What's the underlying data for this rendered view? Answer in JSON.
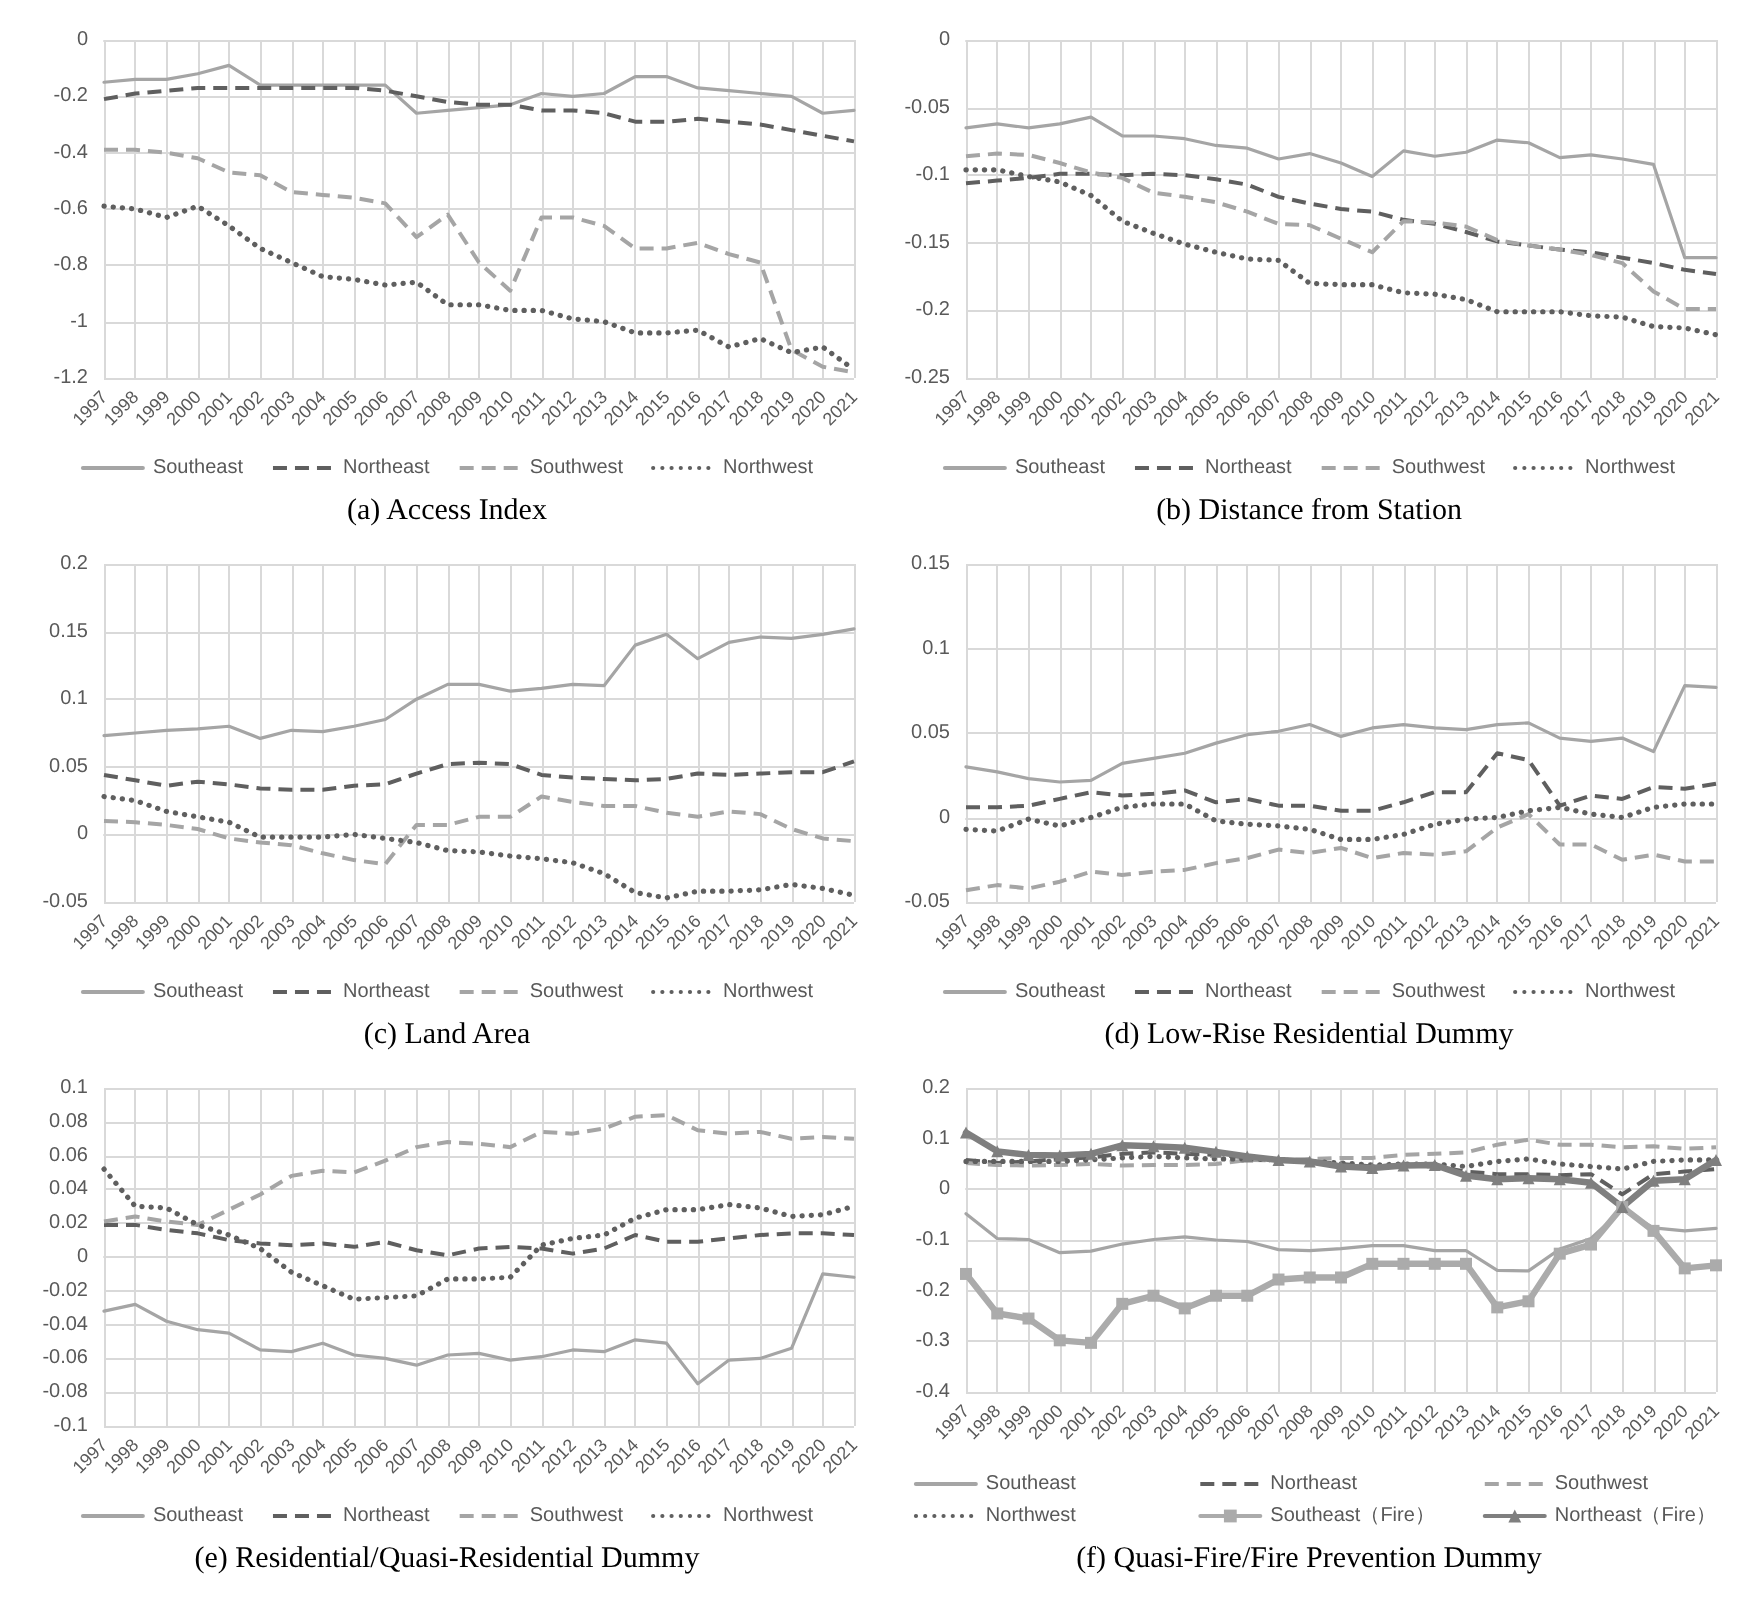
{
  "chart_data": [
    {
      "type": "line",
      "title": "(a) Access Index",
      "categories": [
        "1997",
        "1998",
        "1999",
        "2000",
        "2001",
        "2002",
        "2003",
        "2004",
        "2005",
        "2006",
        "2007",
        "2008",
        "2009",
        "2010",
        "2011",
        "2012",
        "2013",
        "2014",
        "2015",
        "2016",
        "2017",
        "2018",
        "2019",
        "2020",
        "2021"
      ],
      "ylim": [
        -1.2,
        0
      ],
      "yticks": [
        -1.2,
        -1,
        -0.8,
        -0.6,
        -0.4,
        -0.2,
        0
      ],
      "grid": true,
      "legend": "bottom",
      "series": [
        {
          "name": "Southeast",
          "color": "#a5a5a5",
          "line_style": "solid",
          "values": [
            -0.15,
            -0.14,
            -0.14,
            -0.12,
            -0.09,
            -0.16,
            -0.16,
            -0.16,
            -0.16,
            -0.16,
            -0.26,
            -0.25,
            -0.24,
            -0.23,
            -0.19,
            -0.2,
            -0.19,
            -0.13,
            -0.13,
            -0.17,
            -0.18,
            -0.19,
            -0.2,
            -0.26,
            -0.25
          ]
        },
        {
          "name": "Northeast",
          "color": "#5f5f5f",
          "line_style": "dashed",
          "values": [
            -0.21,
            -0.19,
            -0.18,
            -0.17,
            -0.17,
            -0.17,
            -0.17,
            -0.17,
            -0.17,
            -0.18,
            -0.2,
            -0.22,
            -0.23,
            -0.23,
            -0.25,
            -0.25,
            -0.26,
            -0.29,
            -0.29,
            -0.28,
            -0.29,
            -0.3,
            -0.32,
            -0.34,
            -0.36
          ]
        },
        {
          "name": "Southwest",
          "color": "#a5a5a5",
          "line_style": "dashed",
          "values": [
            -0.39,
            -0.39,
            -0.4,
            -0.42,
            -0.47,
            -0.48,
            -0.54,
            -0.55,
            -0.56,
            -0.58,
            -0.7,
            -0.62,
            -0.79,
            -0.89,
            -0.63,
            -0.63,
            -0.66,
            -0.74,
            -0.74,
            -0.72,
            -0.76,
            -0.79,
            -1.1,
            -1.16,
            -1.18
          ]
        },
        {
          "name": "Northwest",
          "color": "#5f5f5f",
          "line_style": "dotted",
          "values": [
            -0.59,
            -0.6,
            -0.63,
            -0.59,
            -0.66,
            -0.74,
            -0.79,
            -0.84,
            -0.85,
            -0.87,
            -0.86,
            -0.94,
            -0.94,
            -0.96,
            -0.96,
            -0.99,
            -1,
            -1.04,
            -1.04,
            -1.03,
            -1.09,
            -1.06,
            -1.11,
            -1.09,
            -1.17
          ]
        }
      ]
    },
    {
      "type": "line",
      "title": "(b) Distance from Station",
      "categories": [
        "1997",
        "1998",
        "1999",
        "2000",
        "2001",
        "2002",
        "2003",
        "2004",
        "2005",
        "2006",
        "2007",
        "2008",
        "2009",
        "2010",
        "2011",
        "2012",
        "2013",
        "2014",
        "2015",
        "2016",
        "2017",
        "2018",
        "2019",
        "2020",
        "2021"
      ],
      "ylim": [
        -0.25,
        0
      ],
      "yticks": [
        -0.25,
        -0.2,
        -0.15,
        -0.1,
        -0.05,
        0
      ],
      "grid": true,
      "legend": "bottom",
      "series": [
        {
          "name": "Southeast",
          "color": "#a5a5a5",
          "line_style": "solid",
          "values": [
            -0.065,
            -0.062,
            -0.065,
            -0.062,
            -0.057,
            -0.071,
            -0.071,
            -0.073,
            -0.078,
            -0.08,
            -0.088,
            -0.084,
            -0.091,
            -0.101,
            -0.082,
            -0.086,
            -0.083,
            -0.074,
            -0.076,
            -0.087,
            -0.085,
            -0.088,
            -0.092,
            -0.161,
            -0.161
          ]
        },
        {
          "name": "Northeast",
          "color": "#5f5f5f",
          "line_style": "dashed",
          "values": [
            -0.106,
            -0.104,
            -0.102,
            -0.099,
            -0.099,
            -0.1,
            -0.099,
            -0.1,
            -0.103,
            -0.107,
            -0.116,
            -0.121,
            -0.125,
            -0.127,
            -0.133,
            -0.136,
            -0.142,
            -0.149,
            -0.152,
            -0.155,
            -0.157,
            -0.161,
            -0.165,
            -0.17,
            -0.173
          ]
        },
        {
          "name": "Southwest",
          "color": "#a5a5a5",
          "line_style": "dashed",
          "values": [
            -0.086,
            -0.084,
            -0.085,
            -0.091,
            -0.098,
            -0.102,
            -0.113,
            -0.116,
            -0.12,
            -0.127,
            -0.136,
            -0.137,
            -0.147,
            -0.157,
            -0.134,
            -0.135,
            -0.138,
            -0.148,
            -0.152,
            -0.155,
            -0.159,
            -0.165,
            -0.186,
            -0.199,
            -0.199
          ]
        },
        {
          "name": "Northwest",
          "color": "#5f5f5f",
          "line_style": "dotted",
          "values": [
            -0.096,
            -0.096,
            -0.101,
            -0.105,
            -0.115,
            -0.134,
            -0.143,
            -0.151,
            -0.157,
            -0.162,
            -0.163,
            -0.18,
            -0.181,
            -0.181,
            -0.187,
            -0.188,
            -0.192,
            -0.201,
            -0.201,
            -0.201,
            -0.204,
            -0.205,
            -0.212,
            -0.213,
            -0.218
          ]
        }
      ]
    },
    {
      "type": "line",
      "title": "(c) Land Area",
      "categories": [
        "1997",
        "1998",
        "1999",
        "2000",
        "2001",
        "2002",
        "2003",
        "2004",
        "2005",
        "2006",
        "2007",
        "2008",
        "2009",
        "2010",
        "2011",
        "2012",
        "2013",
        "2014",
        "2015",
        "2016",
        "2017",
        "2018",
        "2019",
        "2020",
        "2021"
      ],
      "ylim": [
        -0.05,
        0.2
      ],
      "yticks": [
        -0.05,
        0,
        0.05,
        0.1,
        0.15,
        0.2
      ],
      "grid": true,
      "legend": "bottom",
      "series": [
        {
          "name": "Southeast",
          "color": "#a5a5a5",
          "line_style": "solid",
          "values": [
            0.073,
            0.075,
            0.077,
            0.078,
            0.08,
            0.071,
            0.077,
            0.076,
            0.08,
            0.085,
            0.1,
            0.111,
            0.111,
            0.106,
            0.108,
            0.111,
            0.11,
            0.14,
            0.148,
            0.13,
            0.142,
            0.146,
            0.145,
            0.148,
            0.152
          ]
        },
        {
          "name": "Northeast",
          "color": "#5f5f5f",
          "line_style": "dashed",
          "values": [
            0.044,
            0.04,
            0.036,
            0.039,
            0.037,
            0.034,
            0.033,
            0.033,
            0.036,
            0.037,
            0.045,
            0.052,
            0.053,
            0.052,
            0.044,
            0.042,
            0.041,
            0.04,
            0.041,
            0.045,
            0.044,
            0.045,
            0.046,
            0.046,
            0.054
          ]
        },
        {
          "name": "Southwest",
          "color": "#a5a5a5",
          "line_style": "dashed",
          "values": [
            0.01,
            0.009,
            0.007,
            0.004,
            -0.003,
            -0.006,
            -0.008,
            -0.014,
            -0.019,
            -0.022,
            0.007,
            0.007,
            0.013,
            0.013,
            0.028,
            0.024,
            0.021,
            0.021,
            0.016,
            0.013,
            0.017,
            0.015,
            0.004,
            -0.003,
            -0.005
          ]
        },
        {
          "name": "Northwest",
          "color": "#5f5f5f",
          "line_style": "dotted",
          "values": [
            0.028,
            0.025,
            0.017,
            0.013,
            0.009,
            -0.002,
            -0.002,
            -0.002,
            0,
            -0.003,
            -0.006,
            -0.012,
            -0.013,
            -0.016,
            -0.018,
            -0.021,
            -0.029,
            -0.043,
            -0.047,
            -0.042,
            -0.042,
            -0.041,
            -0.037,
            -0.04,
            -0.045
          ]
        }
      ]
    },
    {
      "type": "line",
      "title": "(d) Low-Rise Residential Dummy",
      "categories": [
        "1997",
        "1998",
        "1999",
        "2000",
        "2001",
        "2002",
        "2003",
        "2004",
        "2005",
        "2006",
        "2007",
        "2008",
        "2009",
        "2010",
        "2011",
        "2012",
        "2013",
        "2014",
        "2015",
        "2016",
        "2017",
        "2018",
        "2019",
        "2020",
        "2021"
      ],
      "ylim": [
        -0.05,
        0.15
      ],
      "yticks": [
        -0.05,
        0,
        0.05,
        0.1,
        0.15
      ],
      "grid": true,
      "legend": "bottom",
      "series": [
        {
          "name": "Southeast",
          "color": "#a5a5a5",
          "line_style": "solid",
          "values": [
            0.03,
            0.027,
            0.023,
            0.021,
            0.022,
            0.032,
            0.035,
            0.038,
            0.044,
            0.049,
            0.051,
            0.055,
            0.048,
            0.053,
            0.055,
            0.053,
            0.052,
            0.055,
            0.056,
            0.047,
            0.045,
            0.047,
            0.039,
            0.078,
            0.077
          ]
        },
        {
          "name": "Northeast",
          "color": "#5f5f5f",
          "line_style": "dashed",
          "values": [
            0.006,
            0.006,
            0.007,
            0.011,
            0.015,
            0.013,
            0.014,
            0.016,
            0.009,
            0.011,
            0.007,
            0.007,
            0.004,
            0.004,
            0.009,
            0.015,
            0.015,
            0.038,
            0.034,
            0.007,
            0.013,
            0.011,
            0.018,
            0.017,
            0.02
          ]
        },
        {
          "name": "Southwest",
          "color": "#a5a5a5",
          "line_style": "dashed",
          "values": [
            -0.043,
            -0.04,
            -0.042,
            -0.038,
            -0.032,
            -0.034,
            -0.032,
            -0.031,
            -0.027,
            -0.024,
            -0.019,
            -0.021,
            -0.018,
            -0.024,
            -0.021,
            -0.022,
            -0.02,
            -0.006,
            0.002,
            -0.016,
            -0.016,
            -0.025,
            -0.022,
            -0.026,
            -0.026
          ]
        },
        {
          "name": "Northwest",
          "color": "#5f5f5f",
          "line_style": "dotted",
          "values": [
            -0.007,
            -0.008,
            -0.001,
            -0.005,
            0,
            0.006,
            0.008,
            0.008,
            -0.002,
            -0.004,
            -0.005,
            -0.007,
            -0.013,
            -0.013,
            -0.01,
            -0.004,
            -0.001,
            0,
            0.004,
            0.006,
            0.002,
            0,
            0.006,
            0.008,
            0.008
          ]
        }
      ]
    },
    {
      "type": "line",
      "title": "(e) Residential/Quasi-Residential Dummy",
      "categories": [
        "1997",
        "1998",
        "1999",
        "2000",
        "2001",
        "2002",
        "2003",
        "2004",
        "2005",
        "2006",
        "2007",
        "2008",
        "2009",
        "2010",
        "2011",
        "2012",
        "2013",
        "2014",
        "2015",
        "2016",
        "2017",
        "2018",
        "2019",
        "2020",
        "2021"
      ],
      "ylim": [
        -0.1,
        0.1
      ],
      "yticks": [
        -0.1,
        -0.08,
        -0.06,
        -0.04,
        -0.02,
        0,
        0.02,
        0.04,
        0.06,
        0.08,
        0.1
      ],
      "grid": true,
      "legend": "bottom",
      "series": [
        {
          "name": "Southeast",
          "color": "#a5a5a5",
          "line_style": "solid",
          "values": [
            -0.032,
            -0.028,
            -0.038,
            -0.043,
            -0.045,
            -0.055,
            -0.056,
            -0.051,
            -0.058,
            -0.06,
            -0.064,
            -0.058,
            -0.057,
            -0.061,
            -0.059,
            -0.055,
            -0.056,
            -0.049,
            -0.051,
            -0.075,
            -0.061,
            -0.06,
            -0.054,
            -0.01,
            -0.012
          ]
        },
        {
          "name": "Northeast",
          "color": "#5f5f5f",
          "line_style": "dashed",
          "values": [
            0.019,
            0.019,
            0.016,
            0.014,
            0.01,
            0.008,
            0.007,
            0.008,
            0.006,
            0.009,
            0.004,
            0.001,
            0.005,
            0.006,
            0.005,
            0.002,
            0.005,
            0.013,
            0.009,
            0.009,
            0.011,
            0.013,
            0.014,
            0.014,
            0.013
          ]
        },
        {
          "name": "Southwest",
          "color": "#a5a5a5",
          "line_style": "dashed",
          "values": [
            0.021,
            0.024,
            0.021,
            0.019,
            0.028,
            0.037,
            0.048,
            0.051,
            0.05,
            0.057,
            0.065,
            0.068,
            0.067,
            0.065,
            0.074,
            0.073,
            0.076,
            0.083,
            0.084,
            0.075,
            0.073,
            0.074,
            0.07,
            0.071,
            0.07
          ]
        },
        {
          "name": "Northwest",
          "color": "#5f5f5f",
          "line_style": "dotted",
          "values": [
            0.052,
            0.03,
            0.029,
            0.019,
            0.013,
            0.005,
            -0.009,
            -0.017,
            -0.025,
            -0.024,
            -0.023,
            -0.013,
            -0.013,
            -0.012,
            0.007,
            0.011,
            0.013,
            0.023,
            0.028,
            0.028,
            0.031,
            0.029,
            0.024,
            0.025,
            0.03
          ]
        }
      ]
    },
    {
      "type": "line",
      "title": "(f) Quasi-Fire/Fire Prevention Dummy",
      "categories": [
        "1997",
        "1998",
        "1999",
        "2000",
        "2001",
        "2002",
        "2003",
        "2004",
        "2005",
        "2006",
        "2007",
        "2008",
        "2009",
        "2010",
        "2011",
        "2012",
        "2013",
        "2014",
        "2015",
        "2016",
        "2017",
        "2018",
        "2019",
        "2020",
        "2021"
      ],
      "ylim": [
        -0.4,
        0.2
      ],
      "yticks": [
        -0.4,
        -0.3,
        -0.2,
        -0.1,
        0,
        0.1,
        0.2
      ],
      "grid": true,
      "legend": "bottom",
      "series": [
        {
          "name": "Southeast",
          "color": "#a5a5a5",
          "line_style": "solid",
          "values": [
            -0.048,
            -0.097,
            -0.099,
            -0.125,
            -0.122,
            -0.108,
            -0.099,
            -0.094,
            -0.1,
            -0.103,
            -0.119,
            -0.121,
            -0.117,
            -0.111,
            -0.111,
            -0.121,
            -0.121,
            -0.16,
            -0.161,
            -0.118,
            -0.097,
            -0.04,
            -0.076,
            -0.082,
            -0.077
          ]
        },
        {
          "name": "Northeast",
          "color": "#5f5f5f",
          "line_style": "dashed",
          "values": [
            0.058,
            0.052,
            0.055,
            0.06,
            0.063,
            0.07,
            0.073,
            0.07,
            0.068,
            0.063,
            0.058,
            0.056,
            0.05,
            0.045,
            0.048,
            0.045,
            0.035,
            0.03,
            0.03,
            0.028,
            0.03,
            -0.01,
            0.03,
            0.035,
            0.04
          ]
        },
        {
          "name": "Southwest",
          "color": "#a5a5a5",
          "line_style": "dashed",
          "values": [
            0.052,
            0.048,
            0.047,
            0.048,
            0.05,
            0.047,
            0.048,
            0.048,
            0.05,
            0.058,
            0.057,
            0.06,
            0.062,
            0.062,
            0.068,
            0.07,
            0.073,
            0.088,
            0.098,
            0.088,
            0.088,
            0.083,
            0.085,
            0.08,
            0.083
          ]
        },
        {
          "name": "Northwest",
          "color": "#5f5f5f",
          "line_style": "dotted",
          "values": [
            0.055,
            0.055,
            0.055,
            0.055,
            0.058,
            0.062,
            0.065,
            0.062,
            0.06,
            0.06,
            0.058,
            0.055,
            0.052,
            0.048,
            0.05,
            0.05,
            0.045,
            0.055,
            0.06,
            0.05,
            0.045,
            0.04,
            0.055,
            0.058,
            0.058
          ]
        },
        {
          "name": "Southeast（Fire）",
          "color": "#ababab",
          "line_style": "solid",
          "marker": "square",
          "values": [
            -0.167,
            -0.245,
            -0.255,
            -0.298,
            -0.303,
            -0.226,
            -0.21,
            -0.235,
            -0.21,
            -0.21,
            -0.178,
            -0.174,
            -0.174,
            -0.147,
            -0.147,
            -0.147,
            -0.147,
            -0.233,
            -0.221,
            -0.127,
            -0.109,
            -0.035,
            -0.082,
            -0.156,
            -0.15
          ]
        },
        {
          "name": "Northeast（Fire）",
          "color": "#7f7f7f",
          "line_style": "solid",
          "marker": "triangle",
          "values": [
            0.112,
            0.075,
            0.068,
            0.067,
            0.07,
            0.087,
            0.085,
            0.082,
            0.074,
            0.065,
            0.058,
            0.055,
            0.045,
            0.042,
            0.047,
            0.048,
            0.027,
            0.02,
            0.022,
            0.02,
            0.013,
            -0.035,
            0.017,
            0.02,
            0.058
          ]
        }
      ]
    }
  ]
}
